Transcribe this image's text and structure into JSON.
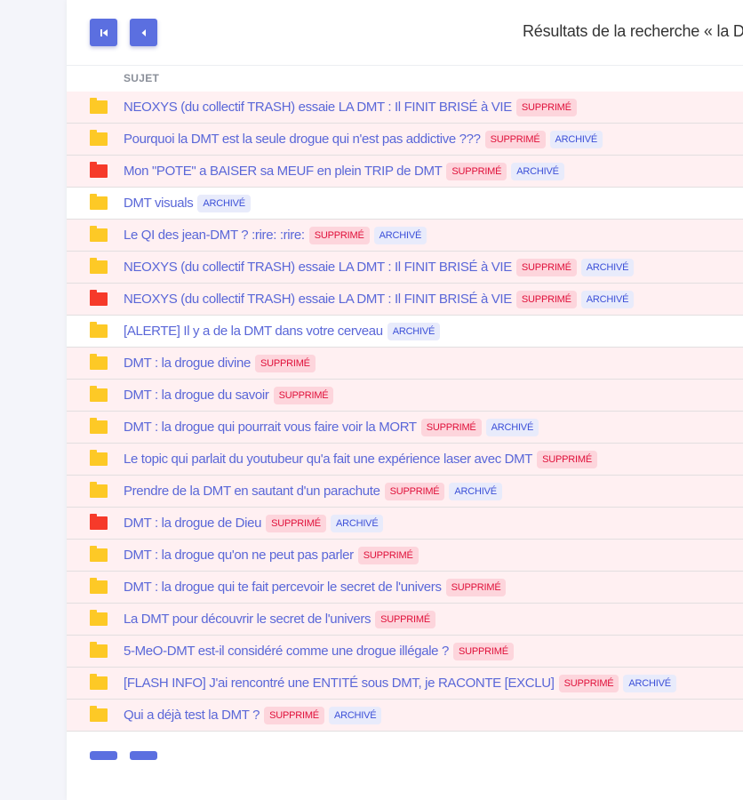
{
  "header": {
    "title": "Résultats de la recherche « la D",
    "first_page_icon": "skip-to-first-icon",
    "prev_page_icon": "chevron-left-icon"
  },
  "table": {
    "column": "SUJET",
    "badge_deleted": "SUPPRIMÉ",
    "badge_archived": "ARCHIVÉ"
  },
  "colors": {
    "accent": "#5b6fe0",
    "folder_normal": "#fdc926",
    "folder_hot": "#f63a2a",
    "deleted_row": "#fff0f2"
  },
  "rows": [
    {
      "subject": "NEOXYS (du collectif TRASH) essaie LA DMT : Il FINIT BRISÉ à VIE",
      "folder": "yellow",
      "deleted": true,
      "archived": false
    },
    {
      "subject": "Pourquoi la DMT est la seule drogue qui n'est pas addictive ???",
      "folder": "yellow",
      "deleted": true,
      "archived": true
    },
    {
      "subject": "Mon \"POTE\" a BAISER sa MEUF en plein TRIP de DMT",
      "folder": "red",
      "deleted": true,
      "archived": true
    },
    {
      "subject": "DMT visuals",
      "folder": "yellow",
      "deleted": false,
      "archived": true
    },
    {
      "subject": "Le QI des jean-DMT ? :rire: :rire:",
      "folder": "yellow",
      "deleted": true,
      "archived": true
    },
    {
      "subject": "NEOXYS (du collectif TRASH) essaie LA DMT : Il FINIT BRISÉ à VIE",
      "folder": "yellow",
      "deleted": true,
      "archived": true
    },
    {
      "subject": "NEOXYS (du collectif TRASH) essaie LA DMT : Il FINIT BRISÉ à VIE",
      "folder": "red",
      "deleted": true,
      "archived": true
    },
    {
      "subject": "[ALERTE] Il y a de la DMT dans votre cerveau",
      "folder": "yellow",
      "deleted": false,
      "archived": true
    },
    {
      "subject": "DMT : la drogue divine",
      "folder": "yellow",
      "deleted": true,
      "archived": false
    },
    {
      "subject": "DMT : la drogue du savoir",
      "folder": "yellow",
      "deleted": true,
      "archived": false
    },
    {
      "subject": "DMT : la drogue qui pourrait vous faire voir la MORT",
      "folder": "yellow",
      "deleted": true,
      "archived": true
    },
    {
      "subject": "Le topic qui parlait du youtubeur qu'a fait une expérience laser avec DMT",
      "folder": "yellow",
      "deleted": true,
      "archived": false
    },
    {
      "subject": "Prendre de la DMT en sautant d'un parachute",
      "folder": "yellow",
      "deleted": true,
      "archived": true
    },
    {
      "subject": "DMT : la drogue de Dieu",
      "folder": "red",
      "deleted": true,
      "archived": true
    },
    {
      "subject": "DMT : la drogue qu'on ne peut pas parler",
      "folder": "yellow",
      "deleted": true,
      "archived": false
    },
    {
      "subject": "DMT : la drogue qui te fait percevoir le secret de l'univers",
      "folder": "yellow",
      "deleted": true,
      "archived": false
    },
    {
      "subject": "La DMT pour découvrir le secret de l'univers",
      "folder": "yellow",
      "deleted": true,
      "archived": false
    },
    {
      "subject": "5-MeO-DMT est-il considéré comme une drogue illégale ?",
      "folder": "yellow",
      "deleted": true,
      "archived": false
    },
    {
      "subject": "[FLASH INFO] J'ai rencontré une ENTITÉ sous DMT, je RACONTE [EXCLU]",
      "folder": "yellow",
      "deleted": true,
      "archived": true
    },
    {
      "subject": "Qui a déjà test la DMT ?",
      "folder": "yellow",
      "deleted": true,
      "archived": true
    }
  ]
}
